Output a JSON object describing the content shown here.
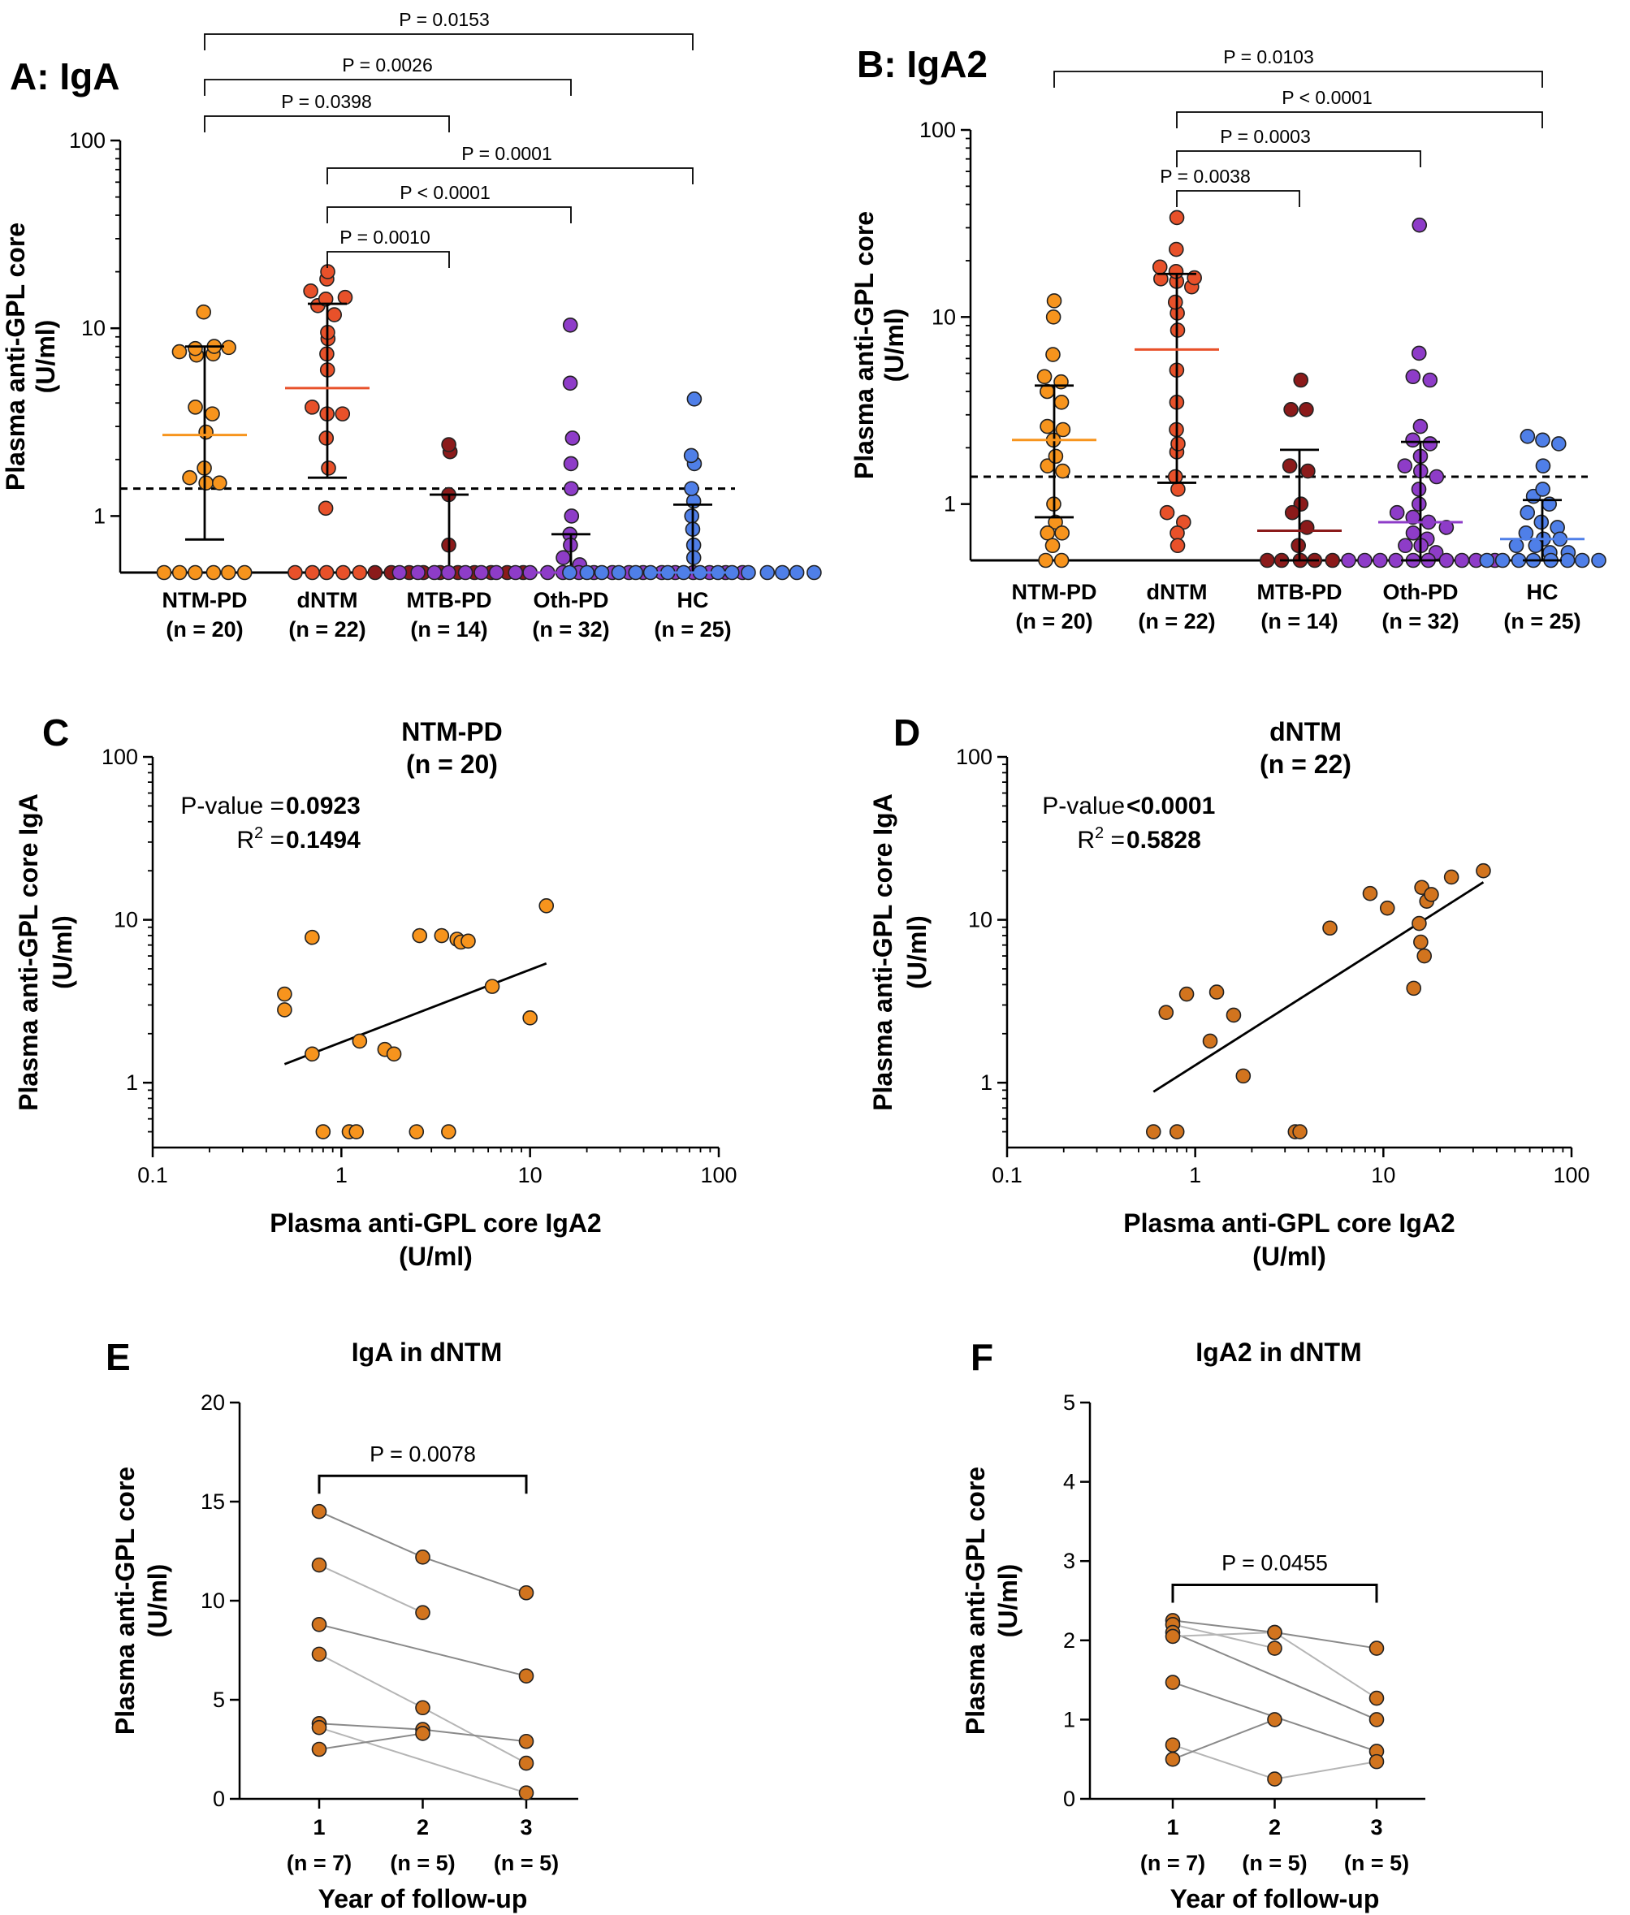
{
  "chart_data": [
    {
      "id": "A",
      "type": "scatter",
      "panel_label": "A: IgA",
      "ylabel_line1": "Plasma anti-GPL core",
      "ylabel_line2": "(U/ml)",
      "yscale": "log",
      "ylim": [
        0.5,
        100
      ],
      "yticks": [
        1,
        10,
        100
      ],
      "ytick_labels": [
        "1",
        "10",
        "100"
      ],
      "cutoff": 1.4,
      "categories": [
        {
          "name": "NTM-PD",
          "n": "(n = 20)",
          "color": "#F7941D",
          "median": 2.7,
          "iqr": [
            0.75,
            8.0
          ],
          "values": [
            12.2,
            7.5,
            7.8,
            8.0,
            7.9,
            7.2,
            7.3,
            3.8,
            3.5,
            2.8,
            1.8,
            1.6,
            1.5,
            1.5,
            0.5,
            0.5,
            0.5,
            0.5,
            0.5,
            0.5
          ]
        },
        {
          "name": "dNTM",
          "n": "(n = 22)",
          "color": "#E8512A",
          "median": 4.8,
          "iqr": [
            1.6,
            13.5
          ],
          "values": [
            20.0,
            18.3,
            15.8,
            14.3,
            14.6,
            13.2,
            11.8,
            9.5,
            8.8,
            7.3,
            6.0,
            3.8,
            3.5,
            3.5,
            2.6,
            1.8,
            1.1,
            0.5,
            0.5,
            0.5,
            0.5,
            0.5
          ]
        },
        {
          "name": "MTB-PD",
          "n": "(n = 14)",
          "color": "#8B1A1A",
          "median": 0.5,
          "iqr": [
            0.5,
            1.3
          ],
          "values": [
            2.4,
            2.2,
            1.3,
            0.7,
            0.5,
            0.5,
            0.5,
            0.5,
            0.5,
            0.5,
            0.5,
            0.5,
            0.5,
            0.5
          ]
        },
        {
          "name": "Oth-PD",
          "n": "(n = 32)",
          "color": "#8E3CC8",
          "median": 0.5,
          "iqr": [
            0.5,
            0.8
          ],
          "values": [
            10.4,
            5.1,
            2.6,
            1.9,
            1.4,
            1.0,
            0.8,
            0.7,
            0.6,
            0.55,
            0.5,
            0.5,
            0.5,
            0.5,
            0.5,
            0.5,
            0.5,
            0.5,
            0.5,
            0.5,
            0.5,
            0.5,
            0.5,
            0.5,
            0.5,
            0.5,
            0.5,
            0.5,
            0.5,
            0.5,
            0.5,
            0.5
          ]
        },
        {
          "name": "HC",
          "n": "(n = 25)",
          "color": "#4F7FE8",
          "median": 0.5,
          "iqr": [
            0.5,
            1.15
          ],
          "values": [
            4.2,
            2.1,
            1.9,
            1.4,
            1.2,
            1.0,
            0.85,
            0.7,
            0.6,
            0.5,
            0.5,
            0.5,
            0.5,
            0.5,
            0.5,
            0.5,
            0.5,
            0.5,
            0.5,
            0.5,
            0.5,
            0.5,
            0.5,
            0.5,
            0.5
          ]
        }
      ],
      "comparisons": [
        {
          "from": 0,
          "to": 4,
          "label": "P = 0.0153"
        },
        {
          "from": 0,
          "to": 3,
          "label": "P = 0.0026"
        },
        {
          "from": 0,
          "to": 2,
          "label": "P = 0.0398"
        },
        {
          "from": 1,
          "to": 4,
          "label": "P = 0.0001"
        },
        {
          "from": 1,
          "to": 3,
          "label": "P < 0.0001"
        },
        {
          "from": 1,
          "to": 2,
          "label": "P = 0.0010"
        }
      ]
    },
    {
      "id": "B",
      "type": "scatter",
      "panel_label": "B: IgA2",
      "ylabel_line1": "Plasma anti-GPL core",
      "ylabel_line2": "(U/ml)",
      "yscale": "log",
      "ylim": [
        0.5,
        100
      ],
      "yticks": [
        1,
        10,
        100
      ],
      "ytick_labels": [
        "1",
        "10",
        "100"
      ],
      "cutoff": 1.4,
      "categories": [
        {
          "name": "NTM-PD",
          "n": "(n = 20)",
          "color": "#F7941D",
          "median": 2.2,
          "iqr": [
            0.85,
            4.3
          ],
          "values": [
            12.2,
            10.0,
            6.3,
            4.8,
            4.5,
            4.0,
            3.5,
            2.6,
            2.5,
            2.2,
            1.8,
            1.6,
            1.5,
            1.0,
            0.8,
            0.7,
            0.7,
            0.6,
            0.5,
            0.5
          ]
        },
        {
          "name": "dNTM",
          "n": "(n = 22)",
          "color": "#E8512A",
          "median": 6.7,
          "iqr": [
            1.3,
            17.0
          ],
          "values": [
            34.0,
            23.0,
            18.5,
            17.5,
            16.2,
            16.0,
            15.5,
            14.5,
            12.0,
            10.5,
            8.5,
            5.2,
            3.5,
            2.5,
            2.1,
            1.9,
            1.4,
            1.2,
            0.9,
            0.8,
            0.7,
            0.6
          ]
        },
        {
          "name": "MTB-PD",
          "n": "(n = 14)",
          "color": "#8B1A1A",
          "median": 0.72,
          "iqr": [
            0.5,
            1.95
          ],
          "values": [
            4.6,
            3.2,
            3.2,
            1.6,
            1.5,
            1.0,
            0.9,
            0.75,
            0.6,
            0.5,
            0.5,
            0.5,
            0.5,
            0.5
          ]
        },
        {
          "name": "Oth-PD",
          "n": "(n = 32)",
          "color": "#8E3CC8",
          "median": 0.8,
          "iqr": [
            0.5,
            2.15
          ],
          "values": [
            31.0,
            6.4,
            4.8,
            4.6,
            2.6,
            2.2,
            2.1,
            1.8,
            1.6,
            1.5,
            1.4,
            1.2,
            1.0,
            0.9,
            0.85,
            0.8,
            0.75,
            0.7,
            0.65,
            0.6,
            0.6,
            0.55,
            0.5,
            0.5,
            0.5,
            0.5,
            0.5,
            0.5,
            0.5,
            0.5,
            0.5,
            0.5
          ]
        },
        {
          "name": "HC",
          "n": "(n = 25)",
          "color": "#4F7FE8",
          "median": 0.65,
          "iqr": [
            0.5,
            1.05
          ],
          "values": [
            2.3,
            2.2,
            2.1,
            1.6,
            1.2,
            1.1,
            1.0,
            0.9,
            0.8,
            0.75,
            0.7,
            0.65,
            0.65,
            0.6,
            0.6,
            0.55,
            0.55,
            0.5,
            0.5,
            0.5,
            0.5,
            0.5,
            0.5,
            0.5,
            0.5
          ]
        }
      ],
      "comparisons": [
        {
          "from": 0,
          "to": 4,
          "label": "P = 0.0103"
        },
        {
          "from": 1,
          "to": 4,
          "label": "P < 0.0001"
        },
        {
          "from": 1,
          "to": 3,
          "label": "P = 0.0003"
        },
        {
          "from": 1,
          "to": 2,
          "label": "P = 0.0038"
        }
      ]
    },
    {
      "id": "C",
      "type": "scatter",
      "panel_label": "C",
      "title_line1": "NTM-PD",
      "title_line2": "(n = 20)",
      "xlabel_line1": "Plasma anti-GPL core IgA2",
      "xlabel_line2": "(U/ml)",
      "ylabel_line1": "Plasma anti-GPL core IgA",
      "ylabel_line2": "(U/ml)",
      "xscale": "log",
      "yscale": "log",
      "xlim": [
        0.1,
        100
      ],
      "ylim": [
        0.4,
        100
      ],
      "xticks": [
        0.1,
        1,
        10,
        100
      ],
      "xtick_labels": [
        "0.1",
        "1",
        "10",
        "100"
      ],
      "yticks": [
        1,
        10,
        100
      ],
      "ytick_labels": [
        "1",
        "10",
        "100"
      ],
      "p_label": "P-value =",
      "p_value": "0.0923",
      "r2_label": "R",
      "r2_sup": "2",
      "r2_eq": " =",
      "r2_value": "0.1494",
      "color": "#F7941D",
      "fit": {
        "x": [
          0.5,
          12.2
        ],
        "y": [
          1.3,
          5.4
        ]
      },
      "points": [
        [
          0.5,
          3.5
        ],
        [
          0.5,
          2.8
        ],
        [
          0.7,
          7.8
        ],
        [
          0.7,
          1.5
        ],
        [
          0.8,
          0.5
        ],
        [
          1.1,
          0.5
        ],
        [
          1.2,
          0.5
        ],
        [
          1.25,
          1.8
        ],
        [
          1.7,
          1.6
        ],
        [
          1.9,
          1.5
        ],
        [
          2.5,
          0.5
        ],
        [
          2.6,
          8.0
        ],
        [
          3.4,
          8.0
        ],
        [
          3.7,
          0.5
        ],
        [
          4.1,
          7.6
        ],
        [
          4.3,
          7.3
        ],
        [
          4.7,
          7.4
        ],
        [
          6.3,
          3.9
        ],
        [
          10.0,
          2.5
        ],
        [
          12.2,
          12.2
        ]
      ]
    },
    {
      "id": "D",
      "type": "scatter",
      "panel_label": "D",
      "title_line1": "dNTM",
      "title_line2": "(n = 22)",
      "xlabel_line1": "Plasma anti-GPL core IgA2",
      "xlabel_line2": "(U/ml)",
      "ylabel_line1": "Plasma anti-GPL core IgA",
      "ylabel_line2": "(U/ml)",
      "xscale": "log",
      "yscale": "log",
      "xlim": [
        0.1,
        100
      ],
      "ylim": [
        0.4,
        100
      ],
      "xticks": [
        0.1,
        1,
        10,
        100
      ],
      "xtick_labels": [
        "0.1",
        "1",
        "10",
        "100"
      ],
      "yticks": [
        1,
        10,
        100
      ],
      "ytick_labels": [
        "1",
        "10",
        "100"
      ],
      "p_label": "P-value ",
      "p_value": "<0.0001",
      "r2_label": "R",
      "r2_sup": "2",
      "r2_eq": " =",
      "r2_value": "0.5828",
      "color": "#D2741E",
      "fit": {
        "x": [
          0.6,
          34.0
        ],
        "y": [
          0.88,
          17.0
        ]
      },
      "points": [
        [
          0.6,
          0.5
        ],
        [
          0.7,
          2.7
        ],
        [
          0.8,
          0.5
        ],
        [
          0.9,
          3.5
        ],
        [
          1.2,
          1.8
        ],
        [
          1.3,
          3.6
        ],
        [
          1.6,
          2.6
        ],
        [
          1.8,
          1.1
        ],
        [
          3.4,
          0.5
        ],
        [
          3.6,
          0.5
        ],
        [
          5.2,
          8.9
        ],
        [
          8.5,
          14.5
        ],
        [
          10.5,
          11.8
        ],
        [
          14.5,
          3.8
        ],
        [
          15.5,
          9.5
        ],
        [
          15.8,
          7.3
        ],
        [
          16.0,
          15.8
        ],
        [
          16.5,
          6.0
        ],
        [
          17.0,
          13.0
        ],
        [
          18.0,
          14.3
        ],
        [
          23.0,
          18.3
        ],
        [
          34.0,
          20.0
        ]
      ]
    },
    {
      "id": "E",
      "type": "line",
      "panel_label": "E",
      "title": "IgA in dNTM",
      "xlabel": "Year of follow-up",
      "ylabel_line1": "Plasma anti-GPL core",
      "ylabel_line2": "(U/ml)",
      "ylim": [
        0,
        20
      ],
      "yticks": [
        0,
        5,
        10,
        15,
        20
      ],
      "ytick_labels": [
        "0",
        "5",
        "10",
        "15",
        "20"
      ],
      "x": [
        1,
        2,
        3
      ],
      "xtick_labels": [
        "1",
        "2",
        "3"
      ],
      "n_labels": [
        "(n = 7)",
        "(n = 5)",
        "(n = 5)"
      ],
      "comparison": {
        "from": 1,
        "to": 3,
        "label": "P = 0.0078"
      },
      "color": "#D2741E",
      "series": [
        {
          "values": [
            14.5,
            12.2,
            10.4
          ]
        },
        {
          "values": [
            11.8,
            9.4,
            null
          ]
        },
        {
          "values": [
            8.8,
            null,
            6.2
          ]
        },
        {
          "values": [
            7.3,
            4.6,
            1.8
          ]
        },
        {
          "values": [
            3.8,
            3.5,
            2.9
          ]
        },
        {
          "values": [
            3.6,
            null,
            0.3
          ]
        },
        {
          "values": [
            2.5,
            3.3,
            null
          ]
        }
      ]
    },
    {
      "id": "F",
      "type": "line",
      "panel_label": "F",
      "title": "IgA2 in dNTM",
      "xlabel": "Year of follow-up",
      "ylabel_line1": "Plasma anti-GPL core",
      "ylabel_line2": "(U/ml)",
      "ylim": [
        0,
        5
      ],
      "yticks": [
        0,
        1,
        2,
        3,
        4,
        5
      ],
      "ytick_labels": [
        "0",
        "1",
        "2",
        "3",
        "4",
        "5"
      ],
      "x": [
        1,
        2,
        3
      ],
      "xtick_labels": [
        "1",
        "2",
        "3"
      ],
      "n_labels": [
        "(n = 7)",
        "(n = 5)",
        "(n = 5)"
      ],
      "comparison": {
        "from": 1,
        "to": 3,
        "label": "P = 0.0455"
      },
      "color": "#D2741E",
      "series": [
        {
          "values": [
            2.25,
            2.1,
            1.9
          ]
        },
        {
          "values": [
            2.2,
            1.9,
            null
          ]
        },
        {
          "values": [
            2.1,
            null,
            1.0
          ]
        },
        {
          "values": [
            2.05,
            2.1,
            1.27
          ]
        },
        {
          "values": [
            1.47,
            null,
            0.6
          ]
        },
        {
          "values": [
            0.68,
            0.25,
            0.47
          ]
        },
        {
          "values": [
            0.5,
            1.0,
            null
          ]
        }
      ]
    }
  ]
}
